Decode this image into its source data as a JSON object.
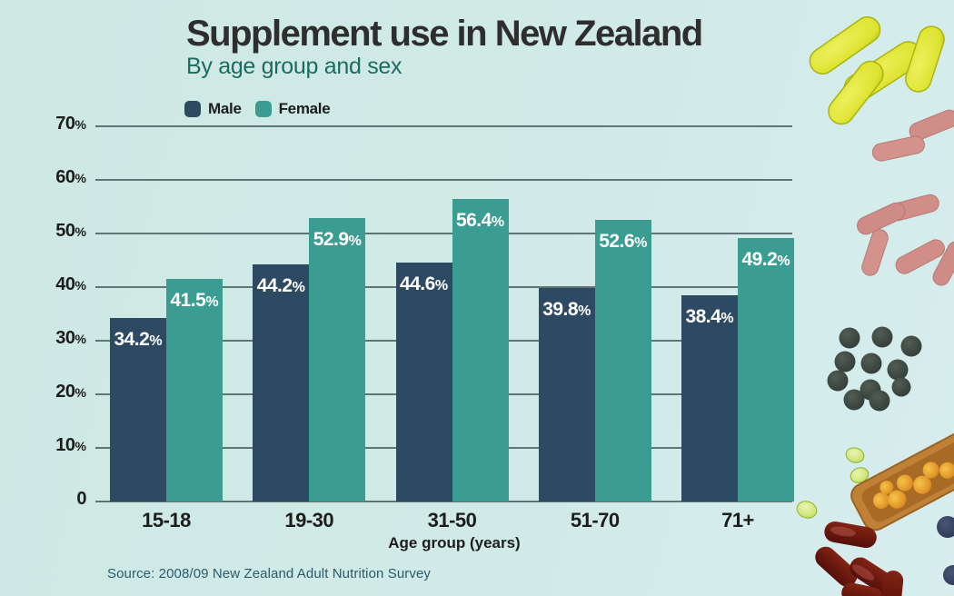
{
  "header": {
    "title": "Supplement use in New Zealand",
    "subtitle": "By age group and sex"
  },
  "chart_data": {
    "type": "bar",
    "title": "Supplement use in New Zealand",
    "subtitle": "By age group and sex",
    "categories": [
      "15-18",
      "19-30",
      "31-50",
      "51-70",
      "71+"
    ],
    "series": [
      {
        "name": "Male",
        "color": "#2e4a63",
        "values": [
          34.2,
          44.2,
          44.6,
          39.8,
          38.4
        ]
      },
      {
        "name": "Female",
        "color": "#3b9d92",
        "values": [
          41.5,
          52.9,
          56.4,
          52.6,
          49.2
        ]
      }
    ],
    "value_suffix": "%",
    "xlabel": "Age group (years)",
    "ylabel": "",
    "ylim": [
      0,
      70
    ],
    "ytick_step": 10,
    "ytick_suffix": "%",
    "grid": "horizontal",
    "legend_position": "top-left"
  },
  "footer": {
    "source": "Source: 2008/09 New Zealand Adult Nutrition Survey"
  },
  "colors": {
    "background": "#d0eae7",
    "male_bar": "#2e4a63",
    "female_bar": "#3b9d92",
    "title_text": "#2e2e2e",
    "subtitle_text": "#1c6b60",
    "axis_text": "#1d1d1b",
    "gridline": "#3a4e4e",
    "bar_label_text": "#ffffff",
    "source_text": "#2a5a6c"
  }
}
